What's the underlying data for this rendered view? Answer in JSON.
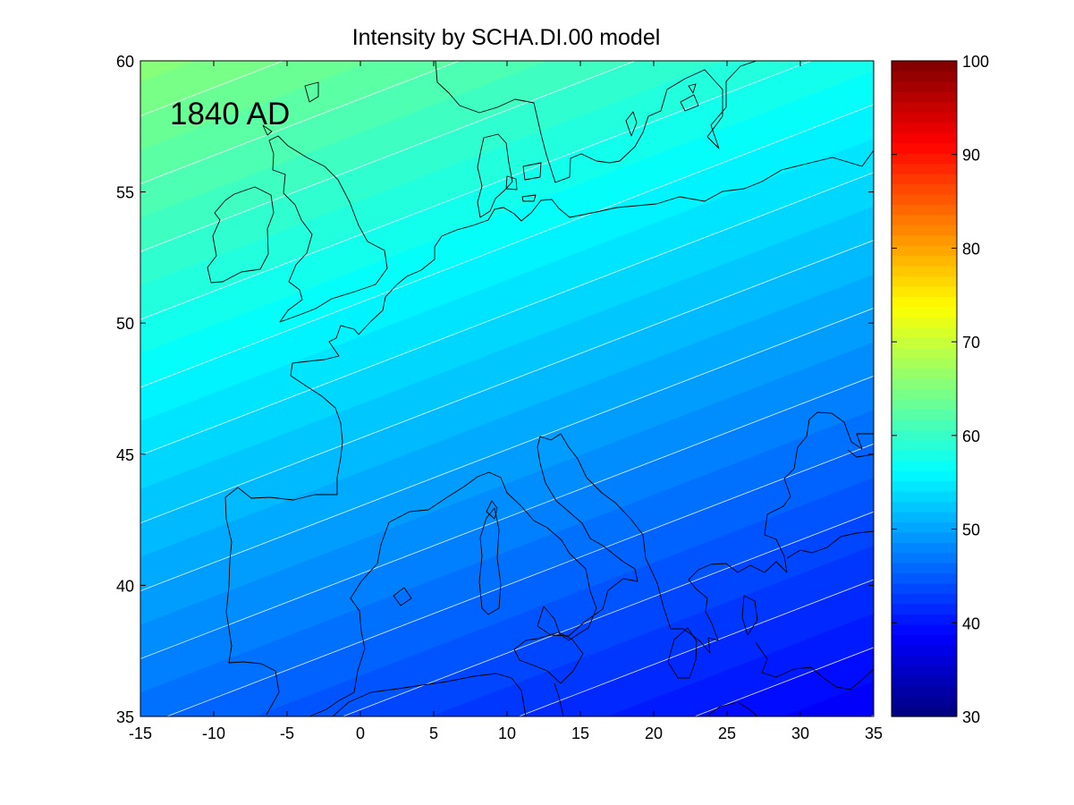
{
  "chart_data": {
    "type": "heatmap",
    "title": "Intensity by SCHA.DI.00 model",
    "annotation": "1840 AD",
    "xlabel": "",
    "ylabel": "",
    "xlim": [
      -15,
      35
    ],
    "ylim": [
      35,
      60
    ],
    "xticks": [
      -15,
      -10,
      -5,
      0,
      5,
      10,
      15,
      20,
      25,
      30,
      35
    ],
    "yticks": [
      35,
      40,
      45,
      50,
      55,
      60
    ],
    "colorbar": {
      "colormap": "jet",
      "range": [
        30,
        100
      ],
      "ticks": [
        30,
        40,
        50,
        60,
        70,
        80,
        90,
        100
      ]
    },
    "field_samples": [
      {
        "lon": -15,
        "lat": 60,
        "value": 66
      },
      {
        "lon": -15,
        "lat": 47,
        "value": 56
      },
      {
        "lon": -15,
        "lat": 35,
        "value": 46
      },
      {
        "lon": 10,
        "lat": 60,
        "value": 61
      },
      {
        "lon": 10,
        "lat": 47,
        "value": 51
      },
      {
        "lon": 10,
        "lat": 35,
        "value": 42
      },
      {
        "lon": 35,
        "lat": 60,
        "value": 57
      },
      {
        "lon": 35,
        "lat": 47,
        "value": 48
      },
      {
        "lon": 35,
        "lat": 35,
        "value": 38
      }
    ],
    "grid": false
  }
}
